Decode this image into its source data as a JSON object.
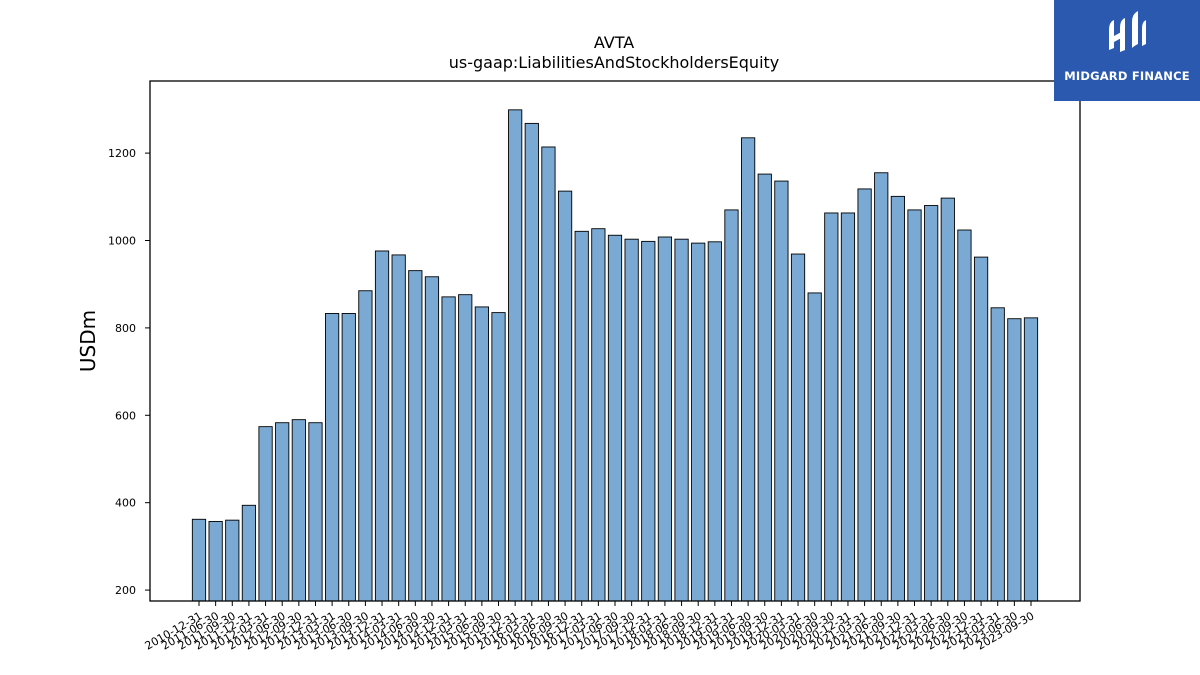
{
  "chart_data": {
    "type": "bar",
    "title": "AVTA",
    "subtitle": "us-gaap:LiabilitiesAndStockholdersEquity",
    "xlabel": "",
    "ylabel": "USDm",
    "ylim": [
      175,
      1365
    ],
    "yticks": [
      200,
      400,
      600,
      800,
      1000,
      1200
    ],
    "grid": false,
    "bar_color": "#7aaad4",
    "bar_edge_color": "#000000",
    "categories": [
      "2010-12-31",
      "2011-06-30",
      "2011-09-30",
      "2011-12-31",
      "2012-03-31",
      "2012-06-30",
      "2012-09-30",
      "2012-12-31",
      "2013-03-31",
      "2013-06-30",
      "2013-09-30",
      "2013-12-31",
      "2014-03-31",
      "2014-06-30",
      "2014-09-30",
      "2014-12-31",
      "2015-03-31",
      "2015-06-30",
      "2015-09-30",
      "2015-12-31",
      "2016-03-31",
      "2016-06-30",
      "2016-09-30",
      "2016-12-31",
      "2017-03-31",
      "2017-06-30",
      "2017-09-30",
      "2017-12-31",
      "2018-03-31",
      "2018-06-30",
      "2018-09-30",
      "2018-12-31",
      "2019-03-31",
      "2019-06-30",
      "2019-09-30",
      "2019-12-31",
      "2020-03-31",
      "2020-06-30",
      "2020-09-30",
      "2020-12-31",
      "2021-03-31",
      "2021-06-30",
      "2021-09-30",
      "2021-12-31",
      "2022-03-31",
      "2022-06-30",
      "2022-09-30",
      "2022-12-31",
      "2023-03-31",
      "2023-06-30",
      "2023-09-30"
    ],
    "values": [
      362,
      357,
      360,
      394,
      574,
      583,
      590,
      583,
      833,
      833,
      885,
      976,
      967,
      931,
      917,
      871,
      876,
      848,
      835,
      1299,
      1268,
      1214,
      1113,
      1021,
      1027,
      1012,
      1003,
      998,
      1008,
      1003,
      994,
      997,
      1070,
      1235,
      1152,
      1136,
      969,
      880,
      1063,
      1063,
      1118,
      1155,
      1101,
      1070,
      1080,
      1097,
      1024,
      962,
      846,
      821,
      823
    ]
  },
  "logo": {
    "text": "MIDGARD FINANCE",
    "background": "#2b59b0"
  }
}
